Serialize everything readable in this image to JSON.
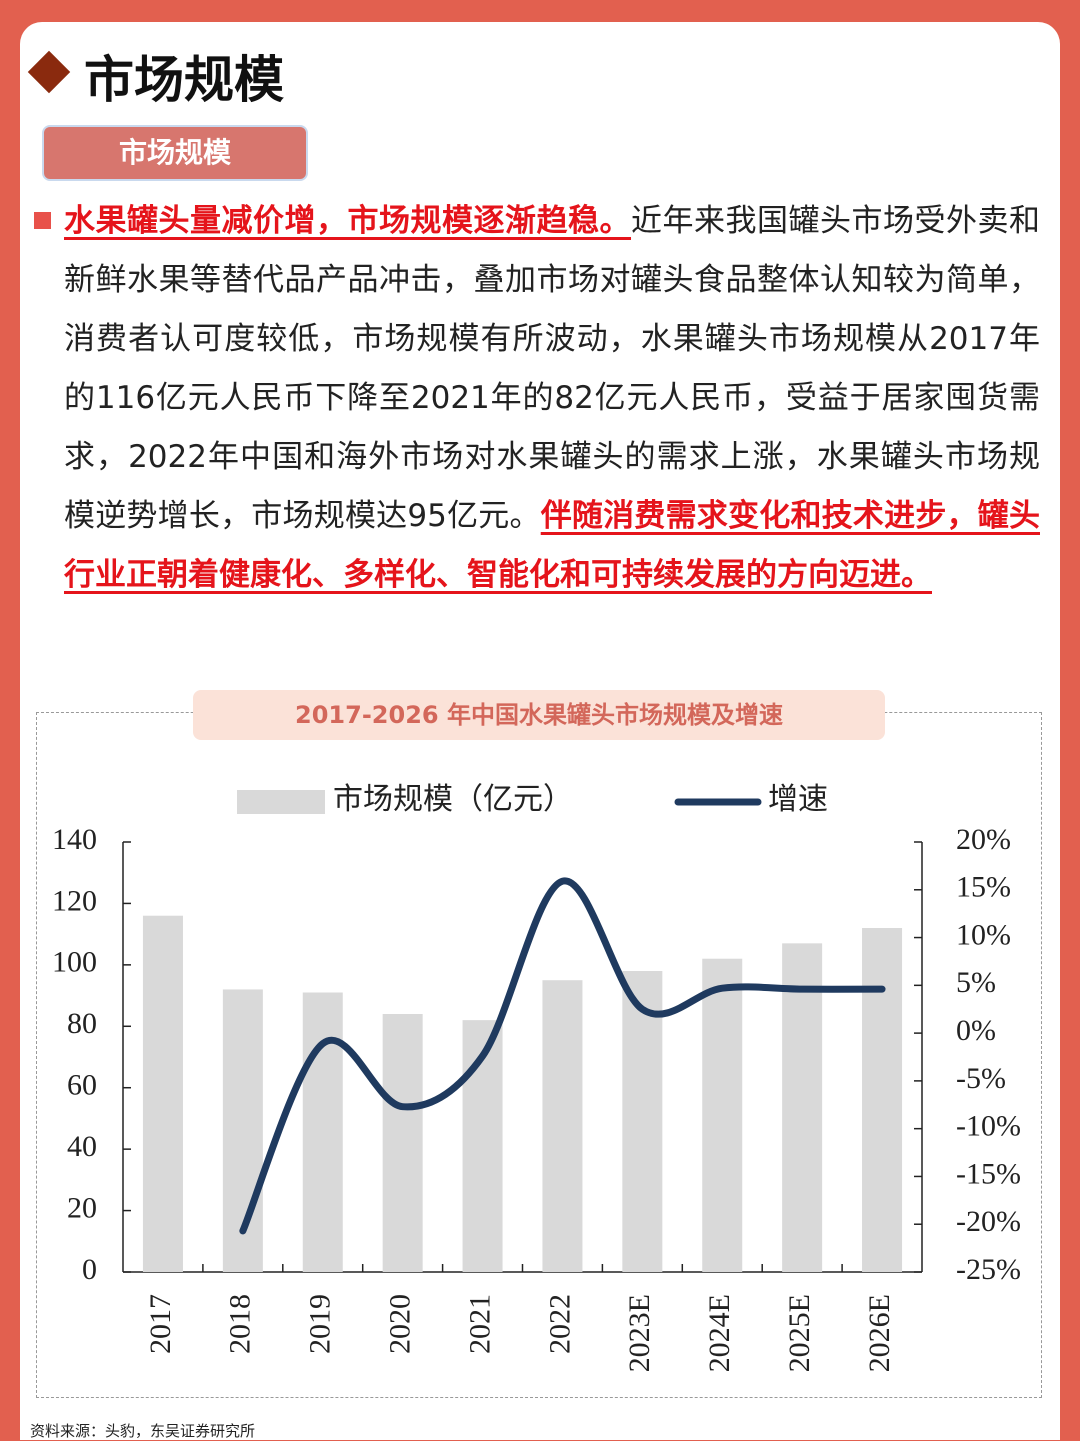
{
  "header": {
    "title": "市场规模",
    "badge": "市场规模"
  },
  "paragraph": {
    "lead": "水果罐头量减价增，市场规模逐渐趋稳。",
    "body": "近年来我国罐头市场受外卖和新鲜水果等替代品产品冲击，叠加市场对罐头食品整体认知较为简单，消费者认可度较低，市场规模有所波动，水果罐头市场规模从2017年的116亿元人民币下降至2021年的82亿元人民币，受益于居家囤货需求，2022年中国和海外市场对水果罐头的需求上涨，水果罐头市场规模逆势增长，市场规模达95亿元。",
    "conclusion": "伴随消费需求变化和技术进步，罐头行业正朝着健康化、多样化、智能化和可持续发展的方向迈进。"
  },
  "chart_data": {
    "type": "bar-line",
    "title": "2017-2026 年中国水果罐头市场规模及增速",
    "categories": [
      "2017",
      "2018",
      "2019",
      "2020",
      "2021",
      "2022",
      "2023E",
      "2024E",
      "2025E",
      "2026E"
    ],
    "series": [
      {
        "name": "市场规模（亿元）",
        "color": "#d9d9d9",
        "values": [
          116,
          92,
          91,
          84,
          82,
          95,
          98,
          102,
          107,
          112
        ]
      },
      {
        "name": "增速",
        "color": "#1f3a5f",
        "axis": "y2",
        "values": [
          null,
          -20.7,
          -1.1,
          -7.7,
          -2.4,
          15.9,
          2.5,
          4.7,
          4.6,
          4.6
        ]
      }
    ],
    "ylim": [
      0,
      140
    ],
    "yticks": [
      0,
      20,
      40,
      60,
      80,
      100,
      120,
      140
    ],
    "y2lim": [
      -25,
      20
    ],
    "y2ticks": [
      {
        "value": -25,
        "label": "-25%"
      },
      {
        "value": -20,
        "label": "-20%"
      },
      {
        "value": -15,
        "label": "-15%"
      },
      {
        "value": -10,
        "label": "-10%"
      },
      {
        "value": -5,
        "label": "-5%"
      },
      {
        "value": 0,
        "label": "0%"
      },
      {
        "value": 5,
        "label": "5%"
      },
      {
        "value": 10,
        "label": "10%"
      },
      {
        "value": 15,
        "label": "15%"
      },
      {
        "value": 20,
        "label": "20%"
      }
    ]
  },
  "source": "资料来源：头豹，东吴证券研究所"
}
